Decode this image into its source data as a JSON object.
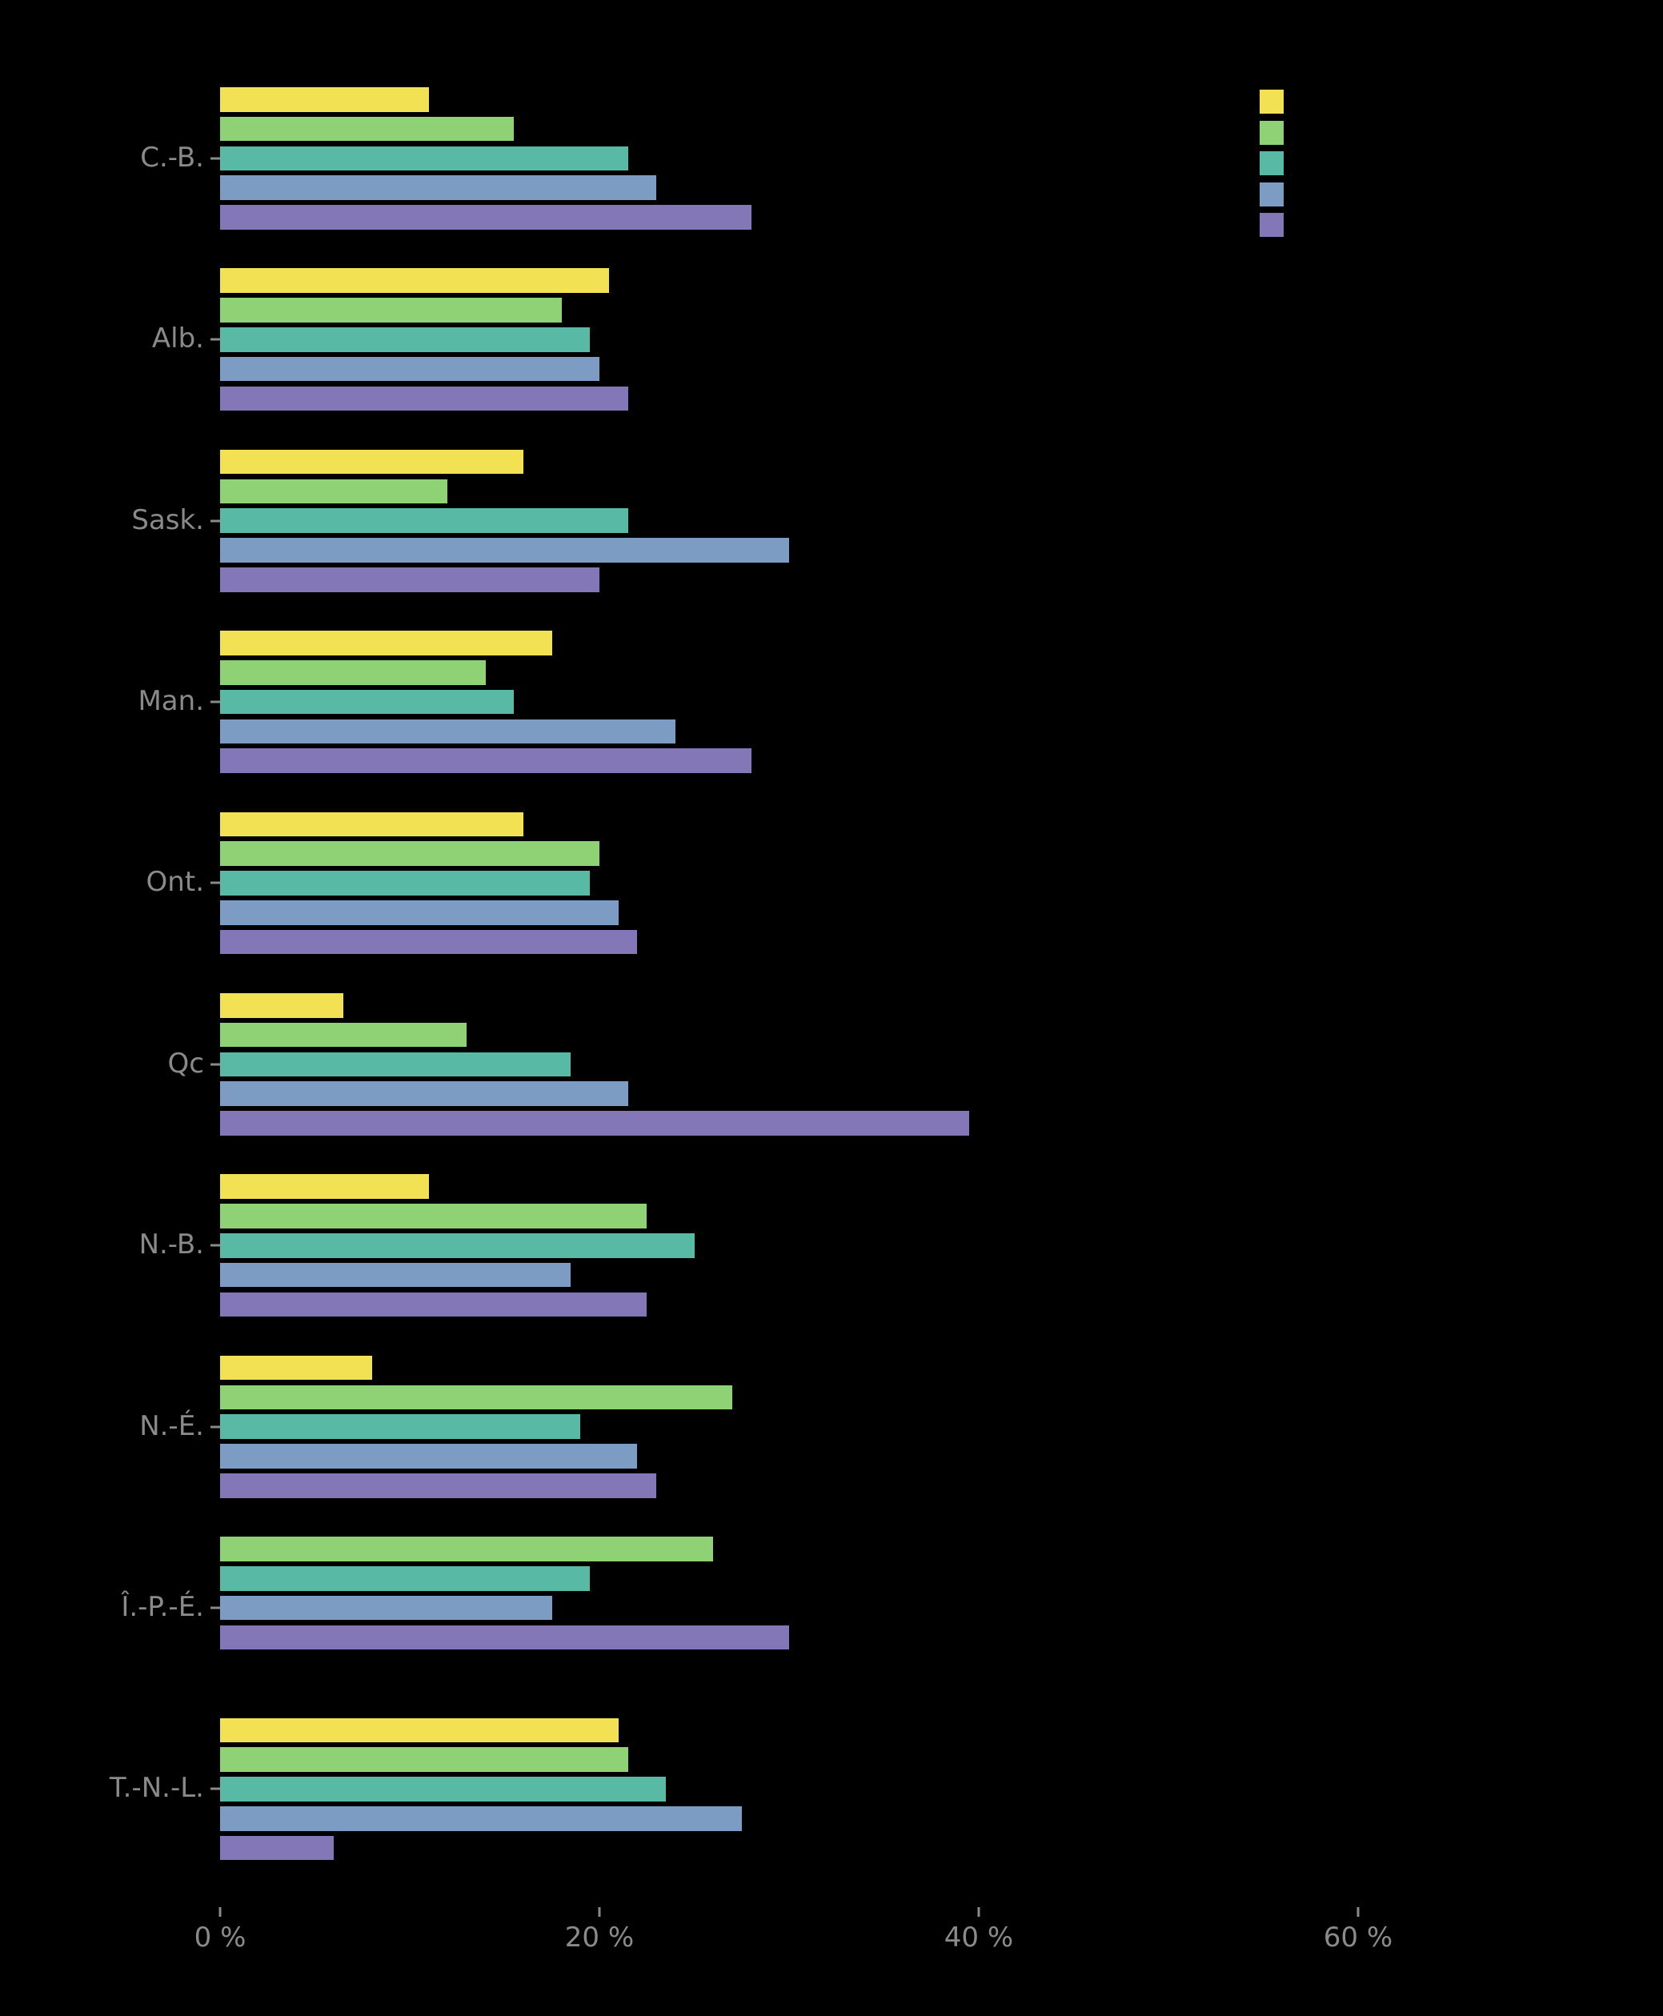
{
  "chart_data": {
    "type": "bar",
    "orientation": "horizontal",
    "title": "",
    "xlabel": "",
    "ylabel": "",
    "background": "#000000",
    "text_color": "#8a8a8a",
    "grid": false,
    "legend_position": "top-right",
    "xlim": [
      0,
      72
    ],
    "x_ticks": [
      "0 %",
      "20 %",
      "40 %",
      "60 %"
    ],
    "x_tick_values": [
      0,
      20,
      40,
      60
    ],
    "categories": [
      "C.-B.",
      "Alb.",
      "Sask.",
      "Man.",
      "Ont.",
      "Qc",
      "N.-B.",
      "N.-É.",
      "Î.-P.-É.",
      "T.-N.-L."
    ],
    "series": [
      {
        "name": "",
        "color": "#f2e152",
        "values": [
          11,
          20.5,
          16,
          17.5,
          16,
          6.5,
          11,
          8,
          null,
          21
        ]
      },
      {
        "name": "",
        "color": "#8fd175",
        "values": [
          15.5,
          18,
          12,
          14,
          20,
          13,
          22.5,
          27,
          26,
          21.5
        ]
      },
      {
        "name": "",
        "color": "#58b9a4",
        "values": [
          21.5,
          19.5,
          21.5,
          15.5,
          19.5,
          18.5,
          25,
          19,
          19.5,
          23.5
        ]
      },
      {
        "name": "",
        "color": "#7c9cc4",
        "values": [
          23,
          20,
          30,
          24,
          21,
          21.5,
          18.5,
          22,
          17.5,
          27.5
        ]
      },
      {
        "name": "",
        "color": "#8477b7",
        "values": [
          28,
          21.5,
          20,
          28,
          22,
          39.5,
          22.5,
          23,
          30,
          6
        ]
      }
    ]
  }
}
